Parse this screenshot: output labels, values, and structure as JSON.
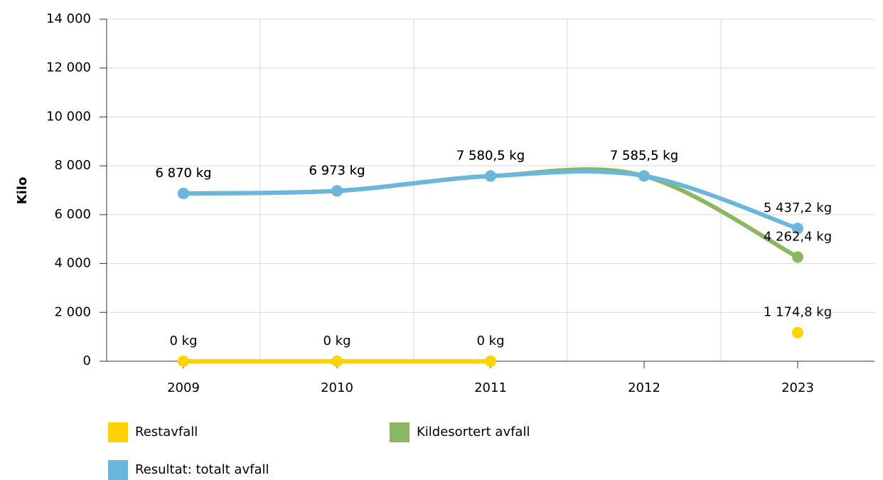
{
  "chart_data": {
    "type": "line",
    "y_label": "Kilo",
    "categories": [
      "2009",
      "2010",
      "2011",
      "2012",
      "2023"
    ],
    "series": [
      {
        "name": "Restavfall",
        "color": "#ffd200",
        "values": [
          0,
          0,
          0,
          null,
          1174.8
        ],
        "value_labels": [
          "0 kg",
          "0 kg",
          "0 kg",
          null,
          "1 174,8 kg"
        ]
      },
      {
        "name": "Kildesortert avfall",
        "color": "#8ab860",
        "values": [
          6870,
          6973,
          7580.5,
          7585.5,
          4262.4
        ],
        "value_labels": [
          "6 870 kg",
          "6 973 kg",
          "7 580,5 kg",
          "7 585,5 kg",
          "4 262,4 kg"
        ]
      },
      {
        "name": "Resultat: totalt avfall",
        "color": "#6ab6dc",
        "values": [
          6870,
          6973,
          7580.5,
          7585.5,
          5437.2
        ],
        "value_labels": [
          "6 870 kg",
          "6 973 kg",
          "7 580,5 kg",
          "7 585,5 kg",
          "5 437,2 kg"
        ]
      }
    ],
    "ylim": [
      0,
      14000
    ],
    "yticks": [
      0,
      {
        "value": 2000,
        "label": "2 000"
      },
      {
        "value": 4000,
        "label": "4 000"
      },
      {
        "value": 6000,
        "label": "6 000"
      },
      {
        "value": 8000,
        "label": "8 000"
      },
      {
        "value": 10000,
        "label": "10 000"
      },
      {
        "value": 12000,
        "label": "12 000"
      },
      {
        "value": 14000,
        "label": "14 000"
      }
    ],
    "grid": true
  }
}
